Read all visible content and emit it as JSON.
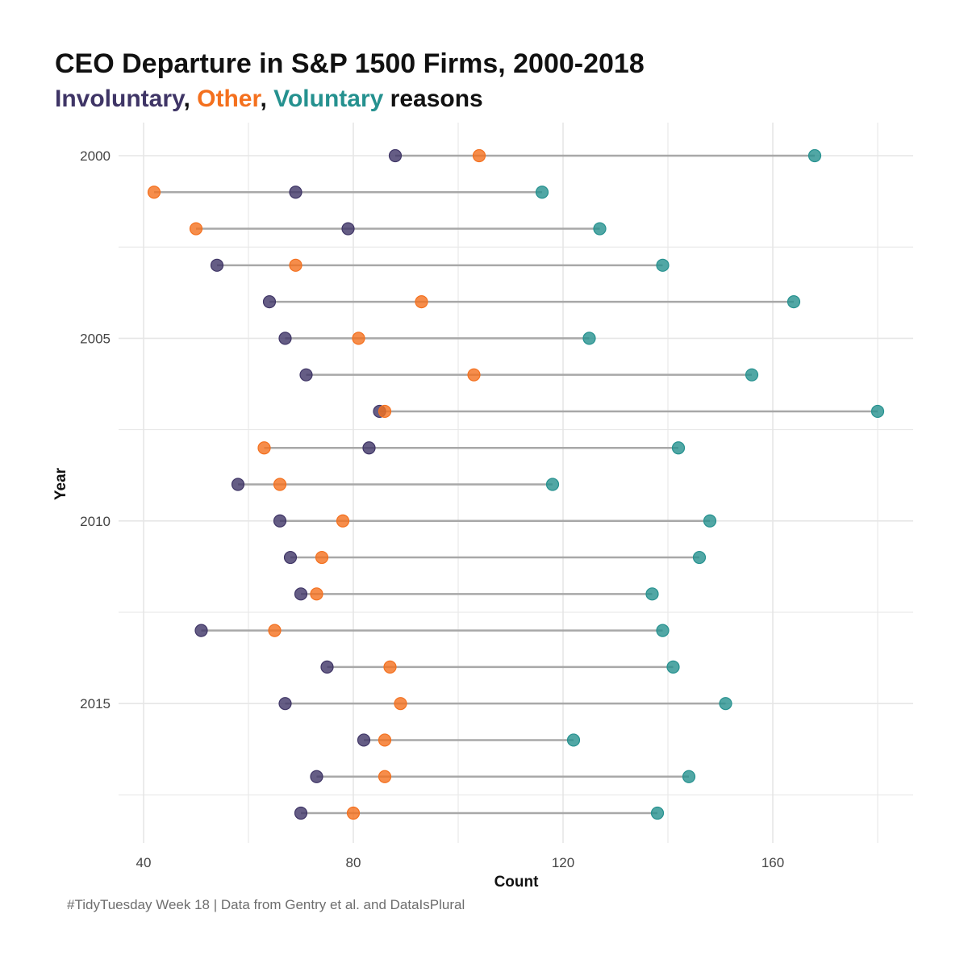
{
  "title": "CEO Departure in S&P 1500 Firms, 2000-2018",
  "subtitle": {
    "involuntary": "Involuntary",
    "sep1": ", ",
    "other": "Other",
    "sep2": ", ",
    "voluntary": "Voluntary",
    "suffix": " reasons"
  },
  "caption": "#TidyTuesday Week 18 | Data from Gentry et al. and DataIsPlural",
  "colors": {
    "involuntary": "#3f3566",
    "other": "#f4701e",
    "voluntary": "#25918f",
    "segment": "#a8a8a8",
    "grid": "#e6e6e6"
  },
  "chart_data": {
    "type": "dumbbell",
    "xlabel": "Count",
    "ylabel": "Year",
    "xlim": [
      38,
      186
    ],
    "x_ticks": [
      40,
      80,
      120,
      160
    ],
    "y_ticks": [
      2000,
      2005,
      2010,
      2015
    ],
    "years": [
      2000,
      2001,
      2002,
      2003,
      2004,
      2005,
      2006,
      2007,
      2008,
      2009,
      2010,
      2011,
      2012,
      2013,
      2014,
      2015,
      2016,
      2017,
      2018
    ],
    "series": [
      {
        "key": "involuntary",
        "name": "Involuntary",
        "values": [
          88,
          69,
          79,
          54,
          64,
          67,
          71,
          85,
          83,
          58,
          66,
          68,
          70,
          51,
          75,
          67,
          82,
          73,
          70
        ]
      },
      {
        "key": "other",
        "name": "Other",
        "values": [
          104,
          42,
          50,
          69,
          93,
          81,
          103,
          86,
          63,
          66,
          78,
          74,
          73,
          65,
          87,
          89,
          86,
          86,
          80
        ]
      },
      {
        "key": "voluntary",
        "name": "Voluntary",
        "values": [
          168,
          116,
          127,
          139,
          164,
          125,
          156,
          180,
          142,
          118,
          148,
          146,
          137,
          139,
          141,
          151,
          122,
          144,
          138
        ]
      }
    ],
    "grid": true,
    "legend": "none (encoded in subtitle colors)"
  }
}
